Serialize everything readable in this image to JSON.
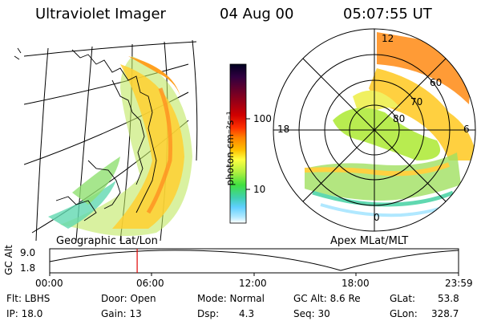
{
  "header": {
    "title": "Ultraviolet Imager",
    "date": "04 Aug 00",
    "time": "05:07:55 UT"
  },
  "left_panel": {
    "caption": "Geographic Lat/Lon"
  },
  "colorbar": {
    "unit_label": "photon cm⁻²s⁻¹",
    "ticks": [
      "100",
      "10"
    ],
    "colors": [
      "#000020",
      "#300040",
      "#800020",
      "#d00000",
      "#ff3000",
      "#ff8000",
      "#ffc000",
      "#ffff40",
      "#b0f040",
      "#40e040",
      "#40d0b0",
      "#60d0ff",
      "#b0e8ff",
      "#ffffff"
    ]
  },
  "right_panel": {
    "caption": "Apex MLat/MLT",
    "mlt_labels": {
      "top": "12",
      "left": "18",
      "right": "6",
      "bottom": "0"
    },
    "lat_labels": [
      "60",
      "70",
      "80"
    ]
  },
  "altitude_plot": {
    "ylabel": "GC Alt",
    "yticks": [
      "9.0",
      "1.8"
    ],
    "xticks": [
      "00:00",
      "06:00",
      "12:00",
      "18:00",
      "23:59"
    ],
    "current_time_fraction": 0.2139,
    "marker_color": "#e00000"
  },
  "info": {
    "flt": "Flt: LBHS",
    "ip": "IP: 18.0",
    "door": "Door: Open",
    "gain": "Gain: 13",
    "mode": "Mode: Normal",
    "dsp": "Dsp:",
    "dsp_value": "4.3",
    "gc_alt": "GC Alt: 8.6 Re",
    "seq": "Seq: 30",
    "glat": "GLat:",
    "glat_value": "53.8",
    "glon": "GLon:",
    "glon_value": "328.7"
  }
}
